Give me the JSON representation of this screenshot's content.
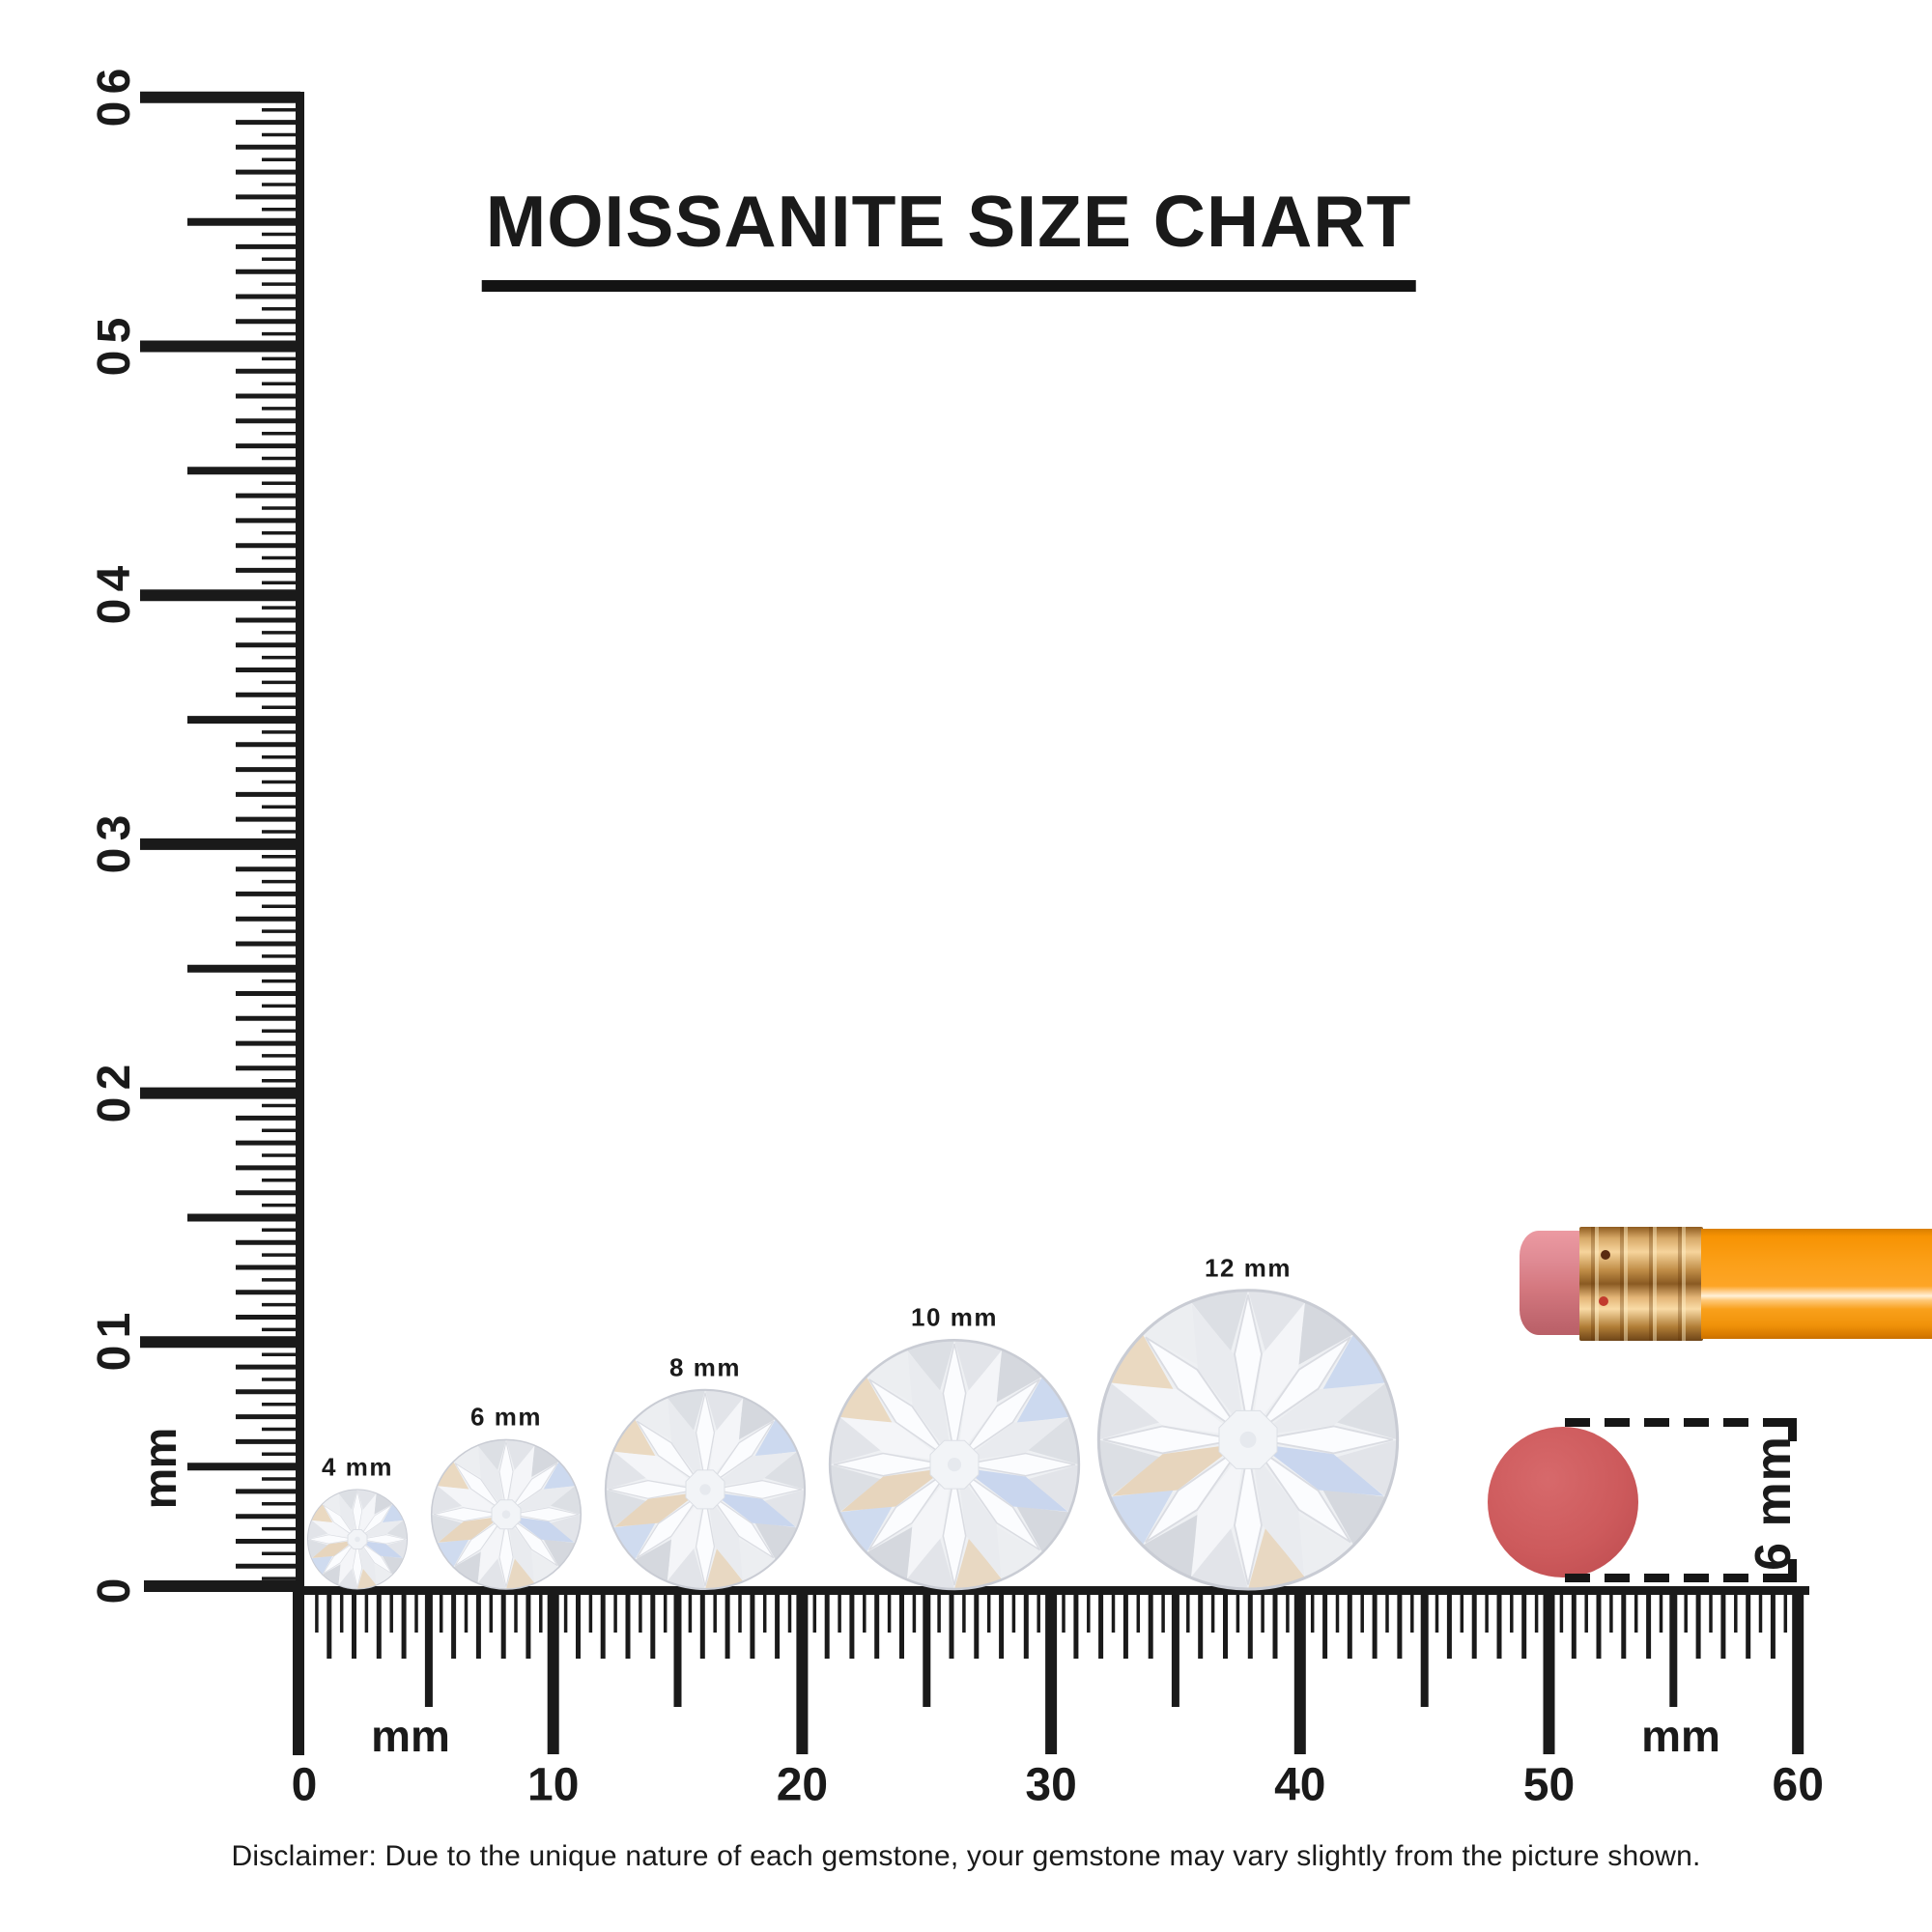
{
  "title": {
    "text": "MOISSANITE SIZE CHART"
  },
  "vertical_ruler": {
    "tick_labels": [
      "0",
      "10",
      "20",
      "30",
      "40",
      "50",
      "60"
    ],
    "unit_label": "mm",
    "max_mm": 60,
    "label_step_mm": 10,
    "mid_tick_step_mm": 5,
    "minor_tick_step_mm": 1,
    "tiny_tick_step_mm": 0.5
  },
  "horizontal_ruler": {
    "tick_labels": [
      "0",
      "10",
      "20",
      "30",
      "40",
      "50",
      "60"
    ],
    "unit_labels": [
      "mm",
      "mm"
    ],
    "max_mm": 60,
    "label_step_mm": 10,
    "mid_tick_step_mm": 5,
    "minor_tick_step_mm": 1,
    "tiny_tick_step_mm": 0.5
  },
  "gems": [
    {
      "size_mm": 4,
      "label": "4 mm"
    },
    {
      "size_mm": 6,
      "label": "6 mm"
    },
    {
      "size_mm": 8,
      "label": "8 mm"
    },
    {
      "size_mm": 10,
      "label": "10 mm"
    },
    {
      "size_mm": 12,
      "label": "12 mm"
    }
  ],
  "pencil": {
    "body_color": "#f9a01b",
    "ferrule_color": "#d7a968",
    "eraser_color": "#d9838c"
  },
  "eraser_dot": {
    "label": "6 mm",
    "diameter_mm": 6,
    "color": "#cd5a5c"
  },
  "disclaimer": {
    "text": "Disclaimer: Due to the unique nature of each gemstone, your gemstone may vary slightly from the picture shown."
  },
  "colors": {
    "ink": "#1a1a1a"
  }
}
